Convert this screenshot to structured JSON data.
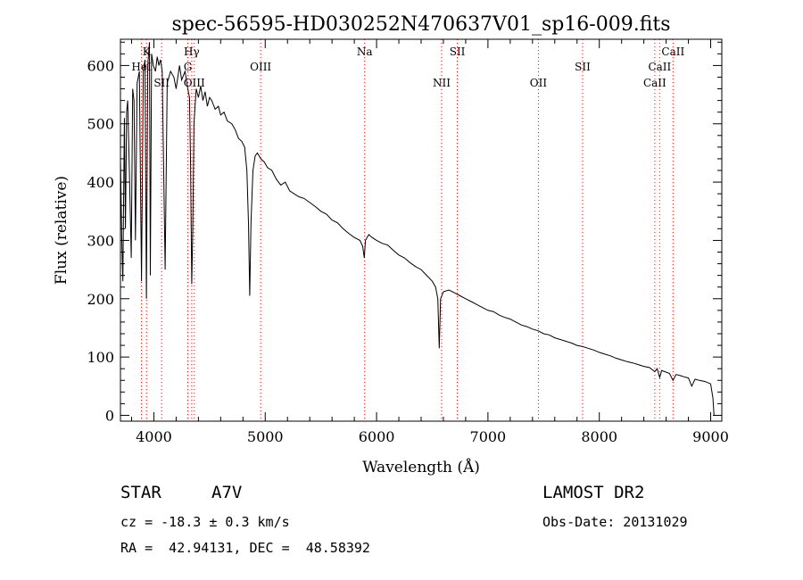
{
  "chart_data": {
    "type": "line",
    "title": "spec-56595-HD030252N470637V01_sp16-009.fits",
    "xlabel": "Wavelength (Å)",
    "ylabel": "Flux (relative)",
    "xlim": [
      3700,
      9100
    ],
    "ylim": [
      -10,
      645
    ],
    "x_ticks": [
      4000,
      5000,
      6000,
      7000,
      8000,
      9000
    ],
    "y_ticks": [
      0,
      100,
      200,
      300,
      400,
      500,
      600
    ],
    "line_color": "#000000",
    "marker_color": "#ff0000",
    "grid": false,
    "series": [
      {
        "points": [
          [
            3700,
            440
          ],
          [
            3712,
            300
          ],
          [
            3722,
            230
          ],
          [
            3735,
            510
          ],
          [
            3745,
            320
          ],
          [
            3755,
            520
          ],
          [
            3765,
            540
          ],
          [
            3780,
            420
          ],
          [
            3797,
            270
          ],
          [
            3810,
            560
          ],
          [
            3822,
            540
          ],
          [
            3835,
            300
          ],
          [
            3850,
            570
          ],
          [
            3870,
            590
          ],
          [
            3889,
            230
          ],
          [
            3905,
            590
          ],
          [
            3920,
            610
          ],
          [
            3933,
            200
          ],
          [
            3945,
            600
          ],
          [
            3960,
            640
          ],
          [
            3968,
            240
          ],
          [
            3980,
            620
          ],
          [
            3995,
            600
          ],
          [
            4015,
            590
          ],
          [
            4030,
            615
          ],
          [
            4045,
            600
          ],
          [
            4060,
            610
          ],
          [
            4075,
            590
          ],
          [
            4101,
            250
          ],
          [
            4120,
            570
          ],
          [
            4150,
            590
          ],
          [
            4180,
            580
          ],
          [
            4200,
            560
          ],
          [
            4230,
            600
          ],
          [
            4250,
            575
          ],
          [
            4280,
            590
          ],
          [
            4305,
            560
          ],
          [
            4320,
            545
          ],
          [
            4330,
            430
          ],
          [
            4340,
            225
          ],
          [
            4350,
            320
          ],
          [
            4360,
            500
          ],
          [
            4380,
            560
          ],
          [
            4400,
            545
          ],
          [
            4420,
            565
          ],
          [
            4440,
            540
          ],
          [
            4460,
            555
          ],
          [
            4480,
            530
          ],
          [
            4500,
            545
          ],
          [
            4520,
            540
          ],
          [
            4550,
            525
          ],
          [
            4580,
            530
          ],
          [
            4600,
            515
          ],
          [
            4630,
            520
          ],
          [
            4660,
            505
          ],
          [
            4700,
            500
          ],
          [
            4730,
            490
          ],
          [
            4760,
            475
          ],
          [
            4790,
            470
          ],
          [
            4815,
            460
          ],
          [
            4835,
            420
          ],
          [
            4850,
            330
          ],
          [
            4861,
            205
          ],
          [
            4872,
            330
          ],
          [
            4890,
            420
          ],
          [
            4910,
            445
          ],
          [
            4930,
            450
          ],
          [
            4960,
            440
          ],
          [
            4990,
            435
          ],
          [
            5020,
            425
          ],
          [
            5060,
            420
          ],
          [
            5100,
            405
          ],
          [
            5140,
            395
          ],
          [
            5180,
            400
          ],
          [
            5220,
            385
          ],
          [
            5260,
            380
          ],
          [
            5300,
            375
          ],
          [
            5350,
            372
          ],
          [
            5400,
            365
          ],
          [
            5450,
            358
          ],
          [
            5500,
            350
          ],
          [
            5550,
            345
          ],
          [
            5600,
            335
          ],
          [
            5650,
            330
          ],
          [
            5700,
            320
          ],
          [
            5750,
            312
          ],
          [
            5800,
            305
          ],
          [
            5850,
            300
          ],
          [
            5875,
            290
          ],
          [
            5890,
            270
          ],
          [
            5900,
            300
          ],
          [
            5930,
            310
          ],
          [
            5960,
            305
          ],
          [
            6000,
            300
          ],
          [
            6050,
            295
          ],
          [
            6100,
            292
          ],
          [
            6150,
            283
          ],
          [
            6200,
            275
          ],
          [
            6250,
            270
          ],
          [
            6300,
            262
          ],
          [
            6350,
            255
          ],
          [
            6400,
            250
          ],
          [
            6450,
            240
          ],
          [
            6500,
            230
          ],
          [
            6530,
            220
          ],
          [
            6550,
            200
          ],
          [
            6563,
            115
          ],
          [
            6575,
            200
          ],
          [
            6600,
            212
          ],
          [
            6650,
            215
          ],
          [
            6700,
            210
          ],
          [
            6750,
            205
          ],
          [
            6800,
            200
          ],
          [
            6850,
            195
          ],
          [
            6900,
            190
          ],
          [
            6950,
            185
          ],
          [
            7000,
            180
          ],
          [
            7050,
            178
          ],
          [
            7100,
            172
          ],
          [
            7150,
            168
          ],
          [
            7200,
            165
          ],
          [
            7250,
            160
          ],
          [
            7300,
            155
          ],
          [
            7350,
            152
          ],
          [
            7400,
            148
          ],
          [
            7450,
            145
          ],
          [
            7500,
            140
          ],
          [
            7550,
            138
          ],
          [
            7600,
            133
          ],
          [
            7650,
            130
          ],
          [
            7700,
            127
          ],
          [
            7750,
            124
          ],
          [
            7800,
            120
          ],
          [
            7850,
            118
          ],
          [
            7900,
            115
          ],
          [
            7950,
            112
          ],
          [
            8000,
            108
          ],
          [
            8050,
            105
          ],
          [
            8100,
            102
          ],
          [
            8150,
            98
          ],
          [
            8200,
            95
          ],
          [
            8250,
            92
          ],
          [
            8300,
            90
          ],
          [
            8350,
            87
          ],
          [
            8400,
            84
          ],
          [
            8450,
            82
          ],
          [
            8498,
            75
          ],
          [
            8520,
            80
          ],
          [
            8542,
            65
          ],
          [
            8560,
            77
          ],
          [
            8600,
            74
          ],
          [
            8630,
            72
          ],
          [
            8662,
            60
          ],
          [
            8690,
            70
          ],
          [
            8730,
            68
          ],
          [
            8760,
            66
          ],
          [
            8800,
            64
          ],
          [
            8830,
            50
          ],
          [
            8860,
            62
          ],
          [
            8900,
            60
          ],
          [
            8950,
            58
          ],
          [
            9000,
            54
          ],
          [
            9020,
            30
          ],
          [
            9030,
            0
          ]
        ]
      }
    ],
    "lines": [
      {
        "label": "K",
        "x": 3934,
        "row": 1
      },
      {
        "label": "HeI",
        "x": 3889,
        "row": 2
      },
      {
        "label": "SII",
        "x": 4070,
        "row": 3
      },
      {
        "label": "Hγ",
        "x": 4340,
        "row": 1
      },
      {
        "label": "G",
        "x": 4305,
        "row": 2
      },
      {
        "label": "OIII",
        "x": 4363,
        "row": 3
      },
      {
        "label": "OIII",
        "x": 4959,
        "row": 2
      },
      {
        "label": "Na",
        "x": 5893,
        "row": 1
      },
      {
        "label": "SII",
        "x": 6725,
        "row": 1
      },
      {
        "label": "NII",
        "x": 6584,
        "row": 3
      },
      {
        "label": "OII",
        "x": 7453,
        "row": 3
      },
      {
        "label": "SII",
        "x": 7850,
        "row": 2
      },
      {
        "label": "CaII",
        "x": 8662,
        "row": 1
      },
      {
        "label": "CaII",
        "x": 8542,
        "row": 2
      },
      {
        "label": "CaII",
        "x": 8498,
        "row": 3
      }
    ]
  },
  "info": {
    "class_label": "STAR",
    "subclass": "A7V",
    "survey": "LAMOST DR2",
    "cz": "cz = -18.3 ± 0.3 km/s",
    "obs_date": "Obs-Date: 20131029",
    "coords": "RA =  42.94131, DEC =  48.58392"
  }
}
